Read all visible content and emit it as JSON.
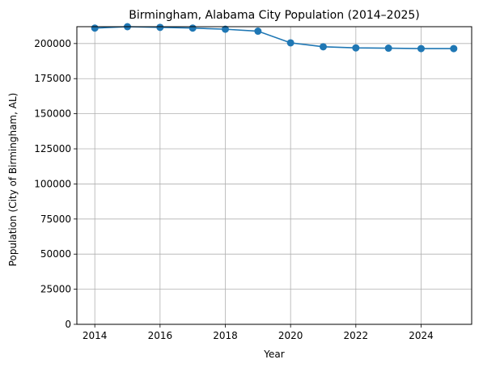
{
  "chart_data": {
    "type": "line",
    "title": "Birmingham, Alabama City Population (2014–2025)",
    "xlabel": "Year",
    "ylabel": "Population (City of Birmingham, AL)",
    "x": [
      2014,
      2015,
      2016,
      2017,
      2018,
      2019,
      2020,
      2021,
      2022,
      2023,
      2024,
      2025
    ],
    "series": [
      {
        "values": [
          211000,
          212000,
          211500,
          211000,
          210200,
          208800,
          200500,
          197700,
          196900,
          196700,
          196400,
          196400
        ],
        "color": "#1f77b4",
        "marker": "circle"
      }
    ],
    "xticks": [
      2014,
      2016,
      2018,
      2020,
      2022,
      2024
    ],
    "yticks": [
      0,
      25000,
      50000,
      75000,
      100000,
      125000,
      150000,
      175000,
      200000
    ],
    "xlim": [
      2013.45,
      2025.55
    ],
    "ylim": [
      0,
      212000
    ],
    "grid": true,
    "legend": "none"
  }
}
